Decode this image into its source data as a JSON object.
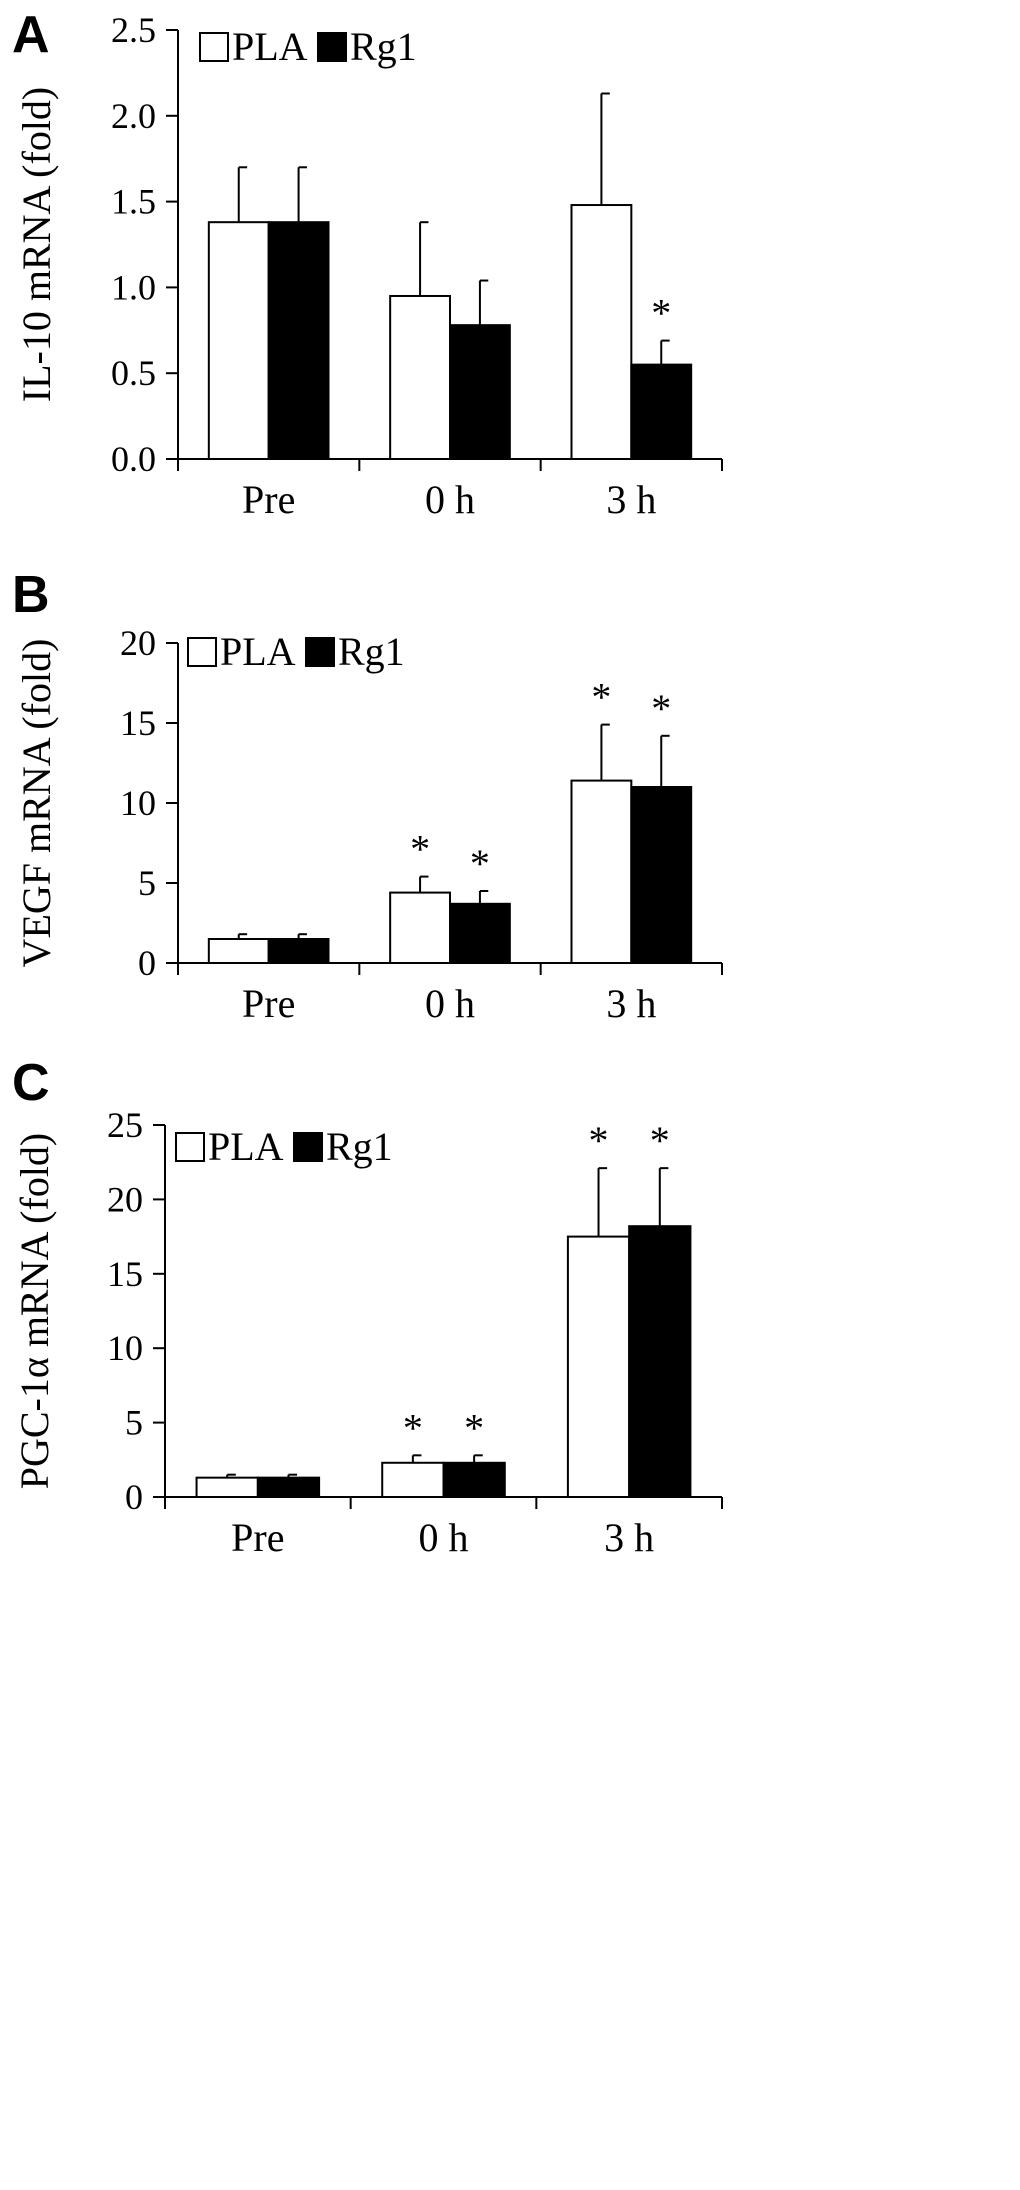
{
  "chart_data": [
    {
      "panel_label": "A",
      "type": "bar",
      "categories": [
        "Pre",
        "0 h",
        "3 h"
      ],
      "ylabel": "IL-10 mRNA (fold)",
      "ylim": [
        0,
        2.5
      ],
      "yticks": [
        "0.0",
        "0.5",
        "1.0",
        "1.5",
        "2.0",
        "2.5"
      ],
      "legend": {
        "placement": "top-left",
        "entries": [
          "PLA",
          "Rg1"
        ]
      },
      "series": [
        {
          "name": "PLA",
          "color": "#ffffff",
          "values": [
            1.38,
            0.95,
            1.48
          ],
          "errors": [
            0.32,
            0.43,
            0.65
          ],
          "annotations": [
            "",
            "",
            ""
          ]
        },
        {
          "name": "Rg1",
          "color": "#000000",
          "values": [
            1.38,
            0.78,
            0.55
          ],
          "errors": [
            0.32,
            0.26,
            0.14
          ],
          "annotations": [
            "",
            "",
            "*"
          ]
        }
      ]
    },
    {
      "panel_label": "B",
      "type": "bar",
      "categories": [
        "Pre",
        "0 h",
        "3 h"
      ],
      "ylabel": "VEGF mRNA (fold)",
      "ylim": [
        0,
        20
      ],
      "yticks": [
        "0",
        "5",
        "10",
        "15",
        "20"
      ],
      "legend": {
        "placement": "top-left",
        "entries": [
          "PLA",
          "Rg1"
        ]
      },
      "series": [
        {
          "name": "PLA",
          "color": "#ffffff",
          "values": [
            1.5,
            4.4,
            11.4
          ],
          "errors": [
            0.3,
            1.0,
            3.5
          ],
          "annotations": [
            "",
            "*",
            "*"
          ]
        },
        {
          "name": "Rg1",
          "color": "#000000",
          "values": [
            1.5,
            3.7,
            11.0
          ],
          "errors": [
            0.3,
            0.8,
            3.2
          ],
          "annotations": [
            "",
            "*",
            "*"
          ]
        }
      ]
    },
    {
      "panel_label": "C",
      "type": "bar",
      "categories": [
        "Pre",
        "0 h",
        "3 h"
      ],
      "ylabel": "PGC-1α mRNA (fold)",
      "ylim": [
        0,
        25
      ],
      "yticks": [
        "0",
        "5",
        "10",
        "15",
        "20",
        "25"
      ],
      "legend": {
        "placement": "top-left",
        "entries": [
          "PLA",
          "Rg1"
        ]
      },
      "series": [
        {
          "name": "PLA",
          "color": "#ffffff",
          "values": [
            1.3,
            2.3,
            17.5
          ],
          "errors": [
            0.2,
            0.5,
            4.6
          ],
          "annotations": [
            "",
            "*",
            "*"
          ]
        },
        {
          "name": "Rg1",
          "color": "#000000",
          "values": [
            1.3,
            2.3,
            18.2
          ],
          "errors": [
            0.2,
            0.5,
            3.9
          ],
          "annotations": [
            "",
            "*",
            "*"
          ]
        }
      ]
    }
  ]
}
